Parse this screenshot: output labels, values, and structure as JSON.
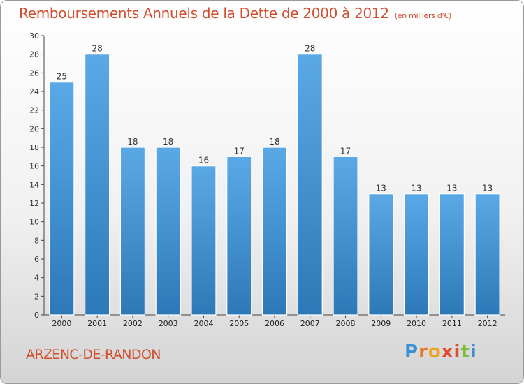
{
  "chart_data": {
    "type": "bar",
    "title": "Remboursements Annuels de la Dette de 2000 à 2012",
    "unit_note": "(en milliers d'€)",
    "categories": [
      "2000",
      "2001",
      "2002",
      "2003",
      "2004",
      "2005",
      "2006",
      "2007",
      "2008",
      "2009",
      "2010",
      "2011",
      "2012"
    ],
    "values": [
      25,
      28,
      18,
      18,
      16,
      17,
      18,
      28,
      17,
      13,
      13,
      13,
      13
    ],
    "ylim": [
      0,
      30
    ],
    "yticks": [
      0,
      2,
      4,
      6,
      8,
      10,
      12,
      14,
      16,
      18,
      20,
      22,
      24,
      26,
      28,
      30
    ],
    "grid": false,
    "xlabel": "",
    "ylabel": ""
  },
  "footer": {
    "commune": "ARZENC-DE-RANDON",
    "logo_text": "Proxiti"
  },
  "colors": {
    "title": "#d24e2e",
    "bar_light": "#5aa9e6",
    "bar_dark": "#2d79b8",
    "logo_letters": [
      "#3d8fd4",
      "#e3792a",
      "#f0a321",
      "#e24a2e",
      "#e24a2e",
      "#7abf3a",
      "#3d8fd4"
    ]
  }
}
